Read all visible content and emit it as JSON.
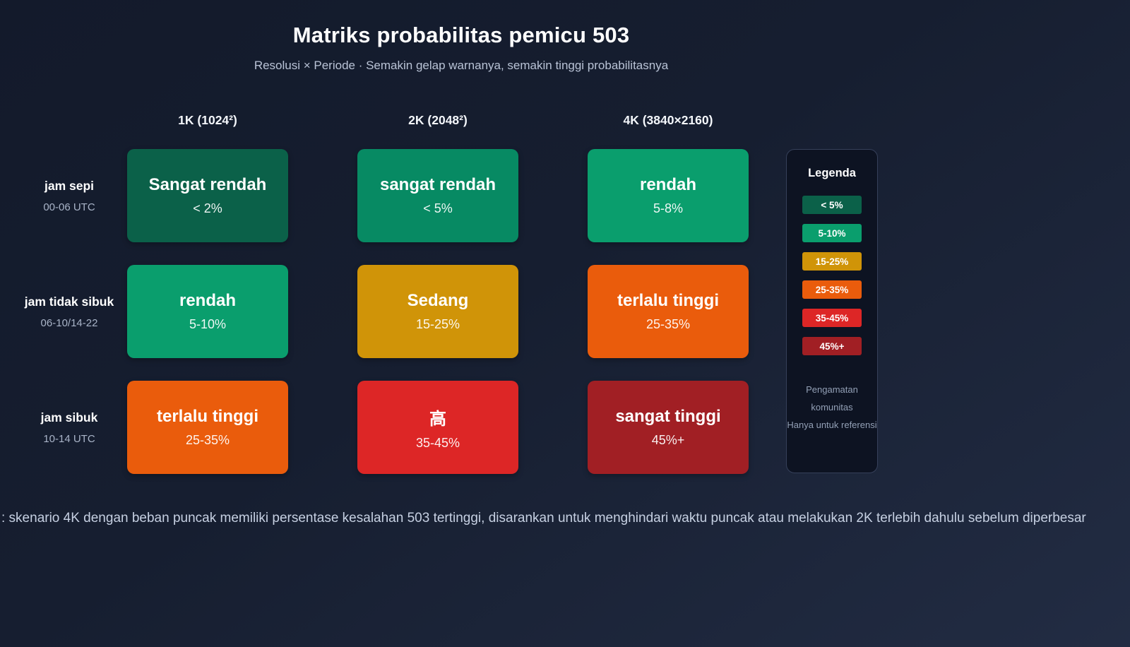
{
  "header": {
    "title": "Matriks probabilitas pemicu 503",
    "subtitle": "Resolusi × Periode · Semakin gelap warnanya, semakin tinggi probabilitasnya"
  },
  "chart_data": {
    "type": "heatmap",
    "title": "Matriks probabilitas pemicu 503",
    "subtitle": "Resolusi × Periode · Semakin gelap warnanya, semakin tinggi probabilitasnya",
    "columns": [
      "1K (1024²)",
      "2K (2048²)",
      "4K (3840×2160)"
    ],
    "rows": [
      {
        "label": "jam sepi",
        "sublabel": "00-06 UTC",
        "cells": [
          {
            "label": "Sangat rendah",
            "value": "< 2%",
            "color": "#0b6149"
          },
          {
            "label": "sangat rendah",
            "value": "< 5%",
            "color": "#078a63"
          },
          {
            "label": "rendah",
            "value": "5-8%",
            "color": "#0a9e6d"
          }
        ]
      },
      {
        "label": "jam tidak sibuk",
        "sublabel": "06-10/14-22",
        "cells": [
          {
            "label": "rendah",
            "value": "5-10%",
            "color": "#0a9e6d"
          },
          {
            "label": "Sedang",
            "value": "15-25%",
            "color": "#d09408"
          },
          {
            "label": "terlalu tinggi",
            "value": "25-35%",
            "color": "#ea5c0c"
          }
        ]
      },
      {
        "label": "jam sibuk",
        "sublabel": "10-14 UTC",
        "cells": [
          {
            "label": "terlalu tinggi",
            "value": "25-35%",
            "color": "#ea5c0c"
          },
          {
            "label": "高",
            "value": "35-45%",
            "color": "#dd2626"
          },
          {
            "label": "sangat tinggi",
            "value": "45%+",
            "color": "#a11f24"
          }
        ]
      }
    ],
    "legend_position": "right"
  },
  "legend": {
    "title": "Legenda",
    "items": [
      {
        "label": "< 5%",
        "color": "#0b6149"
      },
      {
        "label": "5-10%",
        "color": "#0a9e6d"
      },
      {
        "label": "15-25%",
        "color": "#d09408"
      },
      {
        "label": "25-35%",
        "color": "#ea5c0c"
      },
      {
        "label": "35-45%",
        "color": "#dd2626"
      },
      {
        "label": "45%+",
        "color": "#a11f24"
      }
    ],
    "notes": [
      "Pengamatan komunitas",
      "Hanya untuk referensi"
    ]
  },
  "footnote": ": skenario 4K dengan beban puncak memiliki persentase kesalahan 503 tertinggi, disarankan untuk menghindari waktu puncak atau melakukan 2K terlebih dahulu sebelum diperbesar"
}
